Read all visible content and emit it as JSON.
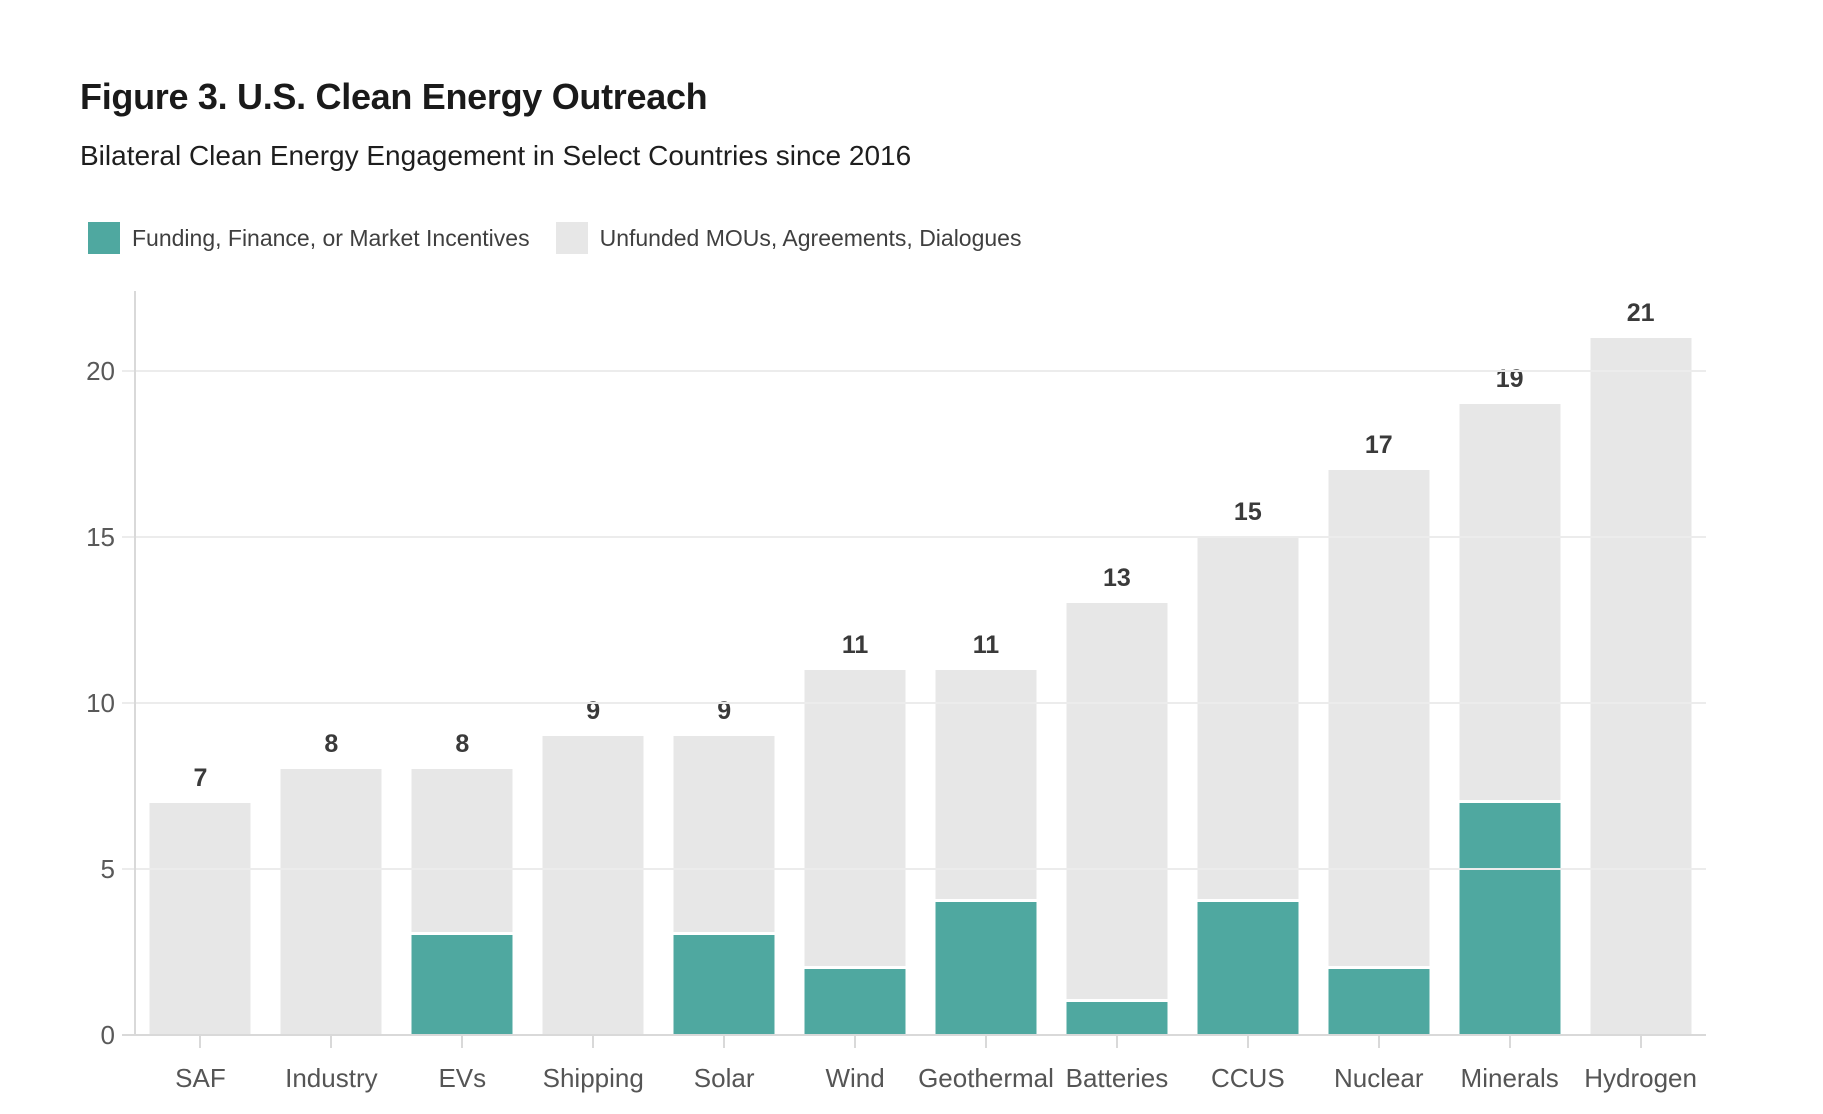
{
  "header": {
    "title": "Figure 3. U.S. Clean Energy Outreach",
    "subtitle": "Bilateral Clean Energy Engagement in Select Countries since 2016"
  },
  "legend": {
    "items": [
      {
        "label": "Funding, Finance, or Market Incentives",
        "color": "#4fa8a0"
      },
      {
        "label": "Unfunded MOUs, Agreements, Dialogues",
        "color": "#e7e7e7"
      }
    ]
  },
  "chart_data": {
    "type": "bar",
    "stacked": true,
    "title": "Figure 3. U.S. Clean Energy Outreach",
    "subtitle": "Bilateral Clean Energy Engagement in Select Countries since 2016",
    "categories": [
      "SAF",
      "Industry",
      "EVs",
      "Shipping",
      "Solar",
      "Wind",
      "Geothermal",
      "Batteries",
      "CCUS",
      "Nuclear",
      "Minerals",
      "Hydrogen"
    ],
    "series": [
      {
        "name": "Funding, Finance, or Market Incentives",
        "color": "#4fa8a0",
        "values": [
          0,
          0,
          3,
          0,
          3,
          2,
          4,
          1,
          4,
          2,
          7,
          0
        ]
      },
      {
        "name": "Unfunded MOUs, Agreements, Dialogues",
        "color": "#e7e7e7",
        "values": [
          7,
          8,
          5,
          9,
          6,
          9,
          7,
          12,
          11,
          15,
          12,
          21
        ]
      }
    ],
    "totals": [
      7,
      8,
      8,
      9,
      9,
      11,
      11,
      13,
      15,
      17,
      19,
      21
    ],
    "total_labels": [
      "7",
      "8",
      "8",
      "9",
      "9",
      "11",
      "11",
      "13",
      "15",
      "17",
      "19",
      "21"
    ],
    "xlabel": "",
    "ylabel": "",
    "y_ticks": [
      0,
      5,
      10,
      15,
      20
    ],
    "y_tick_labels": [
      "0",
      "5",
      "10",
      "15",
      "20"
    ],
    "ylim": [
      0,
      22.4
    ],
    "grid": true,
    "legend_position": "top-left",
    "colors": {
      "grid": "#ececec",
      "axis": "#d9d9d9",
      "segment_divider": "#ffffff",
      "tick_label": "#595959",
      "category_label": "#555555",
      "value_label": "#3a3a3a"
    }
  }
}
